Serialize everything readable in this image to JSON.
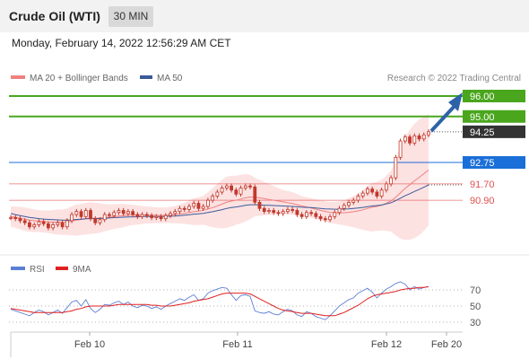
{
  "header": {
    "title": "Crude Oil (WTI)",
    "timeframe": "30 MIN"
  },
  "timestamp": "Monday, February 14, 2022 12:56:29 AM CET",
  "colors": {
    "resistance": "#4aa61d",
    "pivot": "#1a6fd8",
    "support": "#e05050",
    "price_label": "#333333",
    "candle": "#c0392b",
    "bollinger_fill": "#fde2e2",
    "ma20": "#f08080",
    "ma50": "#3c5a99",
    "arrow": "#2e62a8",
    "rsi": "#5b7fd6",
    "rsi_ma": "#e02020"
  },
  "chart_data": [
    {
      "type": "line",
      "chart": "price",
      "legend": [
        "MA 20 + Bollinger Bands",
        "MA 50"
      ],
      "copyright": "Research © 2022 Trading Central",
      "x_ticks": [
        "Feb 10",
        "Feb 11",
        "Feb 12",
        "Feb 20"
      ],
      "levels": [
        {
          "value": 96.0,
          "label": "96.00",
          "kind": "resistance"
        },
        {
          "value": 95.0,
          "label": "95.00",
          "kind": "resistance"
        },
        {
          "value": 94.25,
          "label": "94.25",
          "kind": "last"
        },
        {
          "value": 92.75,
          "label": "92.75",
          "kind": "pivot"
        },
        {
          "value": 91.7,
          "label": "91.70",
          "kind": "support"
        },
        {
          "value": 90.9,
          "label": "90.90",
          "kind": "support"
        }
      ],
      "close": [
        90.05,
        90.0,
        89.9,
        89.8,
        89.6,
        89.7,
        89.85,
        89.75,
        89.55,
        89.7,
        89.8,
        89.6,
        89.9,
        90.2,
        90.35,
        90.1,
        90.4,
        90.0,
        89.8,
        89.95,
        90.2,
        90.15,
        90.3,
        90.4,
        90.25,
        90.35,
        90.2,
        90.1,
        90.2,
        90.15,
        90.05,
        90.1,
        90.0,
        90.15,
        90.25,
        90.35,
        90.5,
        90.45,
        90.6,
        90.75,
        90.5,
        90.6,
        90.9,
        91.1,
        91.3,
        91.5,
        91.6,
        91.4,
        91.2,
        91.5,
        91.6,
        91.55,
        90.8,
        90.5,
        90.35,
        90.4,
        90.3,
        90.25,
        90.35,
        90.45,
        90.4,
        90.2,
        90.1,
        90.3,
        90.25,
        90.1,
        90.0,
        89.95,
        90.1,
        90.3,
        90.5,
        90.65,
        90.8,
        90.9,
        91.1,
        91.25,
        91.45,
        91.3,
        91.1,
        91.4,
        91.7,
        92.0,
        93.0,
        93.8,
        94.0,
        93.7,
        94.05,
        93.9,
        94.1,
        94.25
      ],
      "ma20": [
        90.1,
        90.07,
        90.02,
        89.97,
        89.93,
        89.9,
        89.88,
        89.86,
        89.84,
        89.83,
        89.83,
        89.82,
        89.84,
        89.88,
        89.93,
        89.96,
        90.0,
        90.02,
        90.02,
        90.03,
        90.05,
        90.07,
        90.1,
        90.13,
        90.15,
        90.17,
        90.18,
        90.18,
        90.18,
        90.18,
        90.17,
        90.17,
        90.16,
        90.17,
        90.18,
        90.2,
        90.23,
        90.26,
        90.3,
        90.34,
        90.37,
        90.41,
        90.47,
        90.54,
        90.62,
        90.71,
        90.8,
        90.86,
        90.9,
        90.96,
        91.02,
        91.06,
        91.05,
        91.02,
        90.98,
        90.94,
        90.9,
        90.86,
        90.82,
        90.78,
        90.74,
        90.68,
        90.62,
        90.57,
        90.52,
        90.46,
        90.4,
        90.35,
        90.31,
        90.29,
        90.28,
        90.29,
        90.31,
        90.34,
        90.38,
        90.43,
        90.5,
        90.56,
        90.6,
        90.66,
        90.75,
        90.86,
        91.04,
        91.26,
        91.48,
        91.66,
        91.85,
        92.02,
        92.2,
        92.38
      ],
      "upper_band": [
        90.6,
        90.6,
        90.58,
        90.55,
        90.5,
        90.45,
        90.42,
        90.4,
        90.4,
        90.42,
        90.45,
        90.45,
        90.5,
        90.6,
        90.7,
        90.72,
        90.78,
        90.8,
        90.78,
        90.75,
        90.72,
        90.7,
        90.7,
        90.72,
        90.72,
        90.7,
        90.68,
        90.65,
        90.62,
        90.6,
        90.58,
        90.56,
        90.55,
        90.55,
        90.58,
        90.62,
        90.7,
        90.78,
        90.88,
        91.0,
        91.05,
        91.12,
        91.3,
        91.5,
        91.7,
        91.9,
        92.05,
        92.1,
        92.1,
        92.15,
        92.18,
        92.15,
        92.0,
        91.9,
        91.8,
        91.7,
        91.6,
        91.5,
        91.4,
        91.35,
        91.3,
        91.2,
        91.1,
        91.05,
        91.0,
        90.95,
        90.9,
        90.85,
        90.82,
        90.82,
        90.85,
        90.9,
        91.0,
        91.1,
        91.25,
        91.4,
        91.6,
        91.75,
        91.8,
        91.9,
        92.1,
        92.35,
        92.9,
        93.5,
        94.0,
        94.35,
        94.65,
        94.85,
        95.0,
        95.1
      ],
      "lower_band": [
        89.6,
        89.55,
        89.48,
        89.4,
        89.35,
        89.34,
        89.34,
        89.32,
        89.3,
        89.25,
        89.22,
        89.2,
        89.2,
        89.18,
        89.16,
        89.2,
        89.22,
        89.25,
        89.27,
        89.31,
        89.38,
        89.44,
        89.5,
        89.54,
        89.58,
        89.64,
        89.68,
        89.71,
        89.74,
        89.76,
        89.77,
        89.78,
        89.78,
        89.79,
        89.78,
        89.78,
        89.76,
        89.74,
        89.72,
        89.68,
        89.69,
        89.7,
        89.64,
        89.58,
        89.54,
        89.52,
        89.55,
        89.62,
        89.7,
        89.77,
        89.86,
        89.97,
        90.1,
        90.14,
        90.16,
        90.18,
        90.2,
        90.22,
        90.24,
        90.21,
        90.18,
        90.16,
        90.14,
        90.09,
        90.04,
        89.97,
        89.9,
        89.85,
        89.8,
        89.76,
        89.71,
        89.68,
        89.62,
        89.58,
        89.51,
        89.46,
        89.4,
        89.37,
        89.4,
        89.42,
        89.4,
        89.37,
        89.18,
        89.02,
        88.96,
        88.97,
        89.05,
        89.19,
        89.4,
        89.66
      ],
      "ma50": [
        90.25,
        90.2,
        90.15,
        90.1,
        90.06,
        90.03,
        90.0,
        89.98,
        89.96,
        89.95,
        89.94,
        89.93,
        89.93,
        89.94,
        89.96,
        89.97,
        89.99,
        90.0,
        90.0,
        90.01,
        90.02,
        90.03,
        90.05,
        90.06,
        90.07,
        90.08,
        90.09,
        90.09,
        90.1,
        90.1,
        90.1,
        90.1,
        90.1,
        90.11,
        90.12,
        90.13,
        90.15,
        90.17,
        90.19,
        90.22,
        90.24,
        90.26,
        90.3,
        90.34,
        90.39,
        90.44,
        90.5,
        90.54,
        90.57,
        90.61,
        90.65,
        90.68,
        90.68,
        90.67,
        90.66,
        90.65,
        90.64,
        90.63,
        90.62,
        90.61,
        90.6,
        90.58,
        90.56,
        90.55,
        90.54,
        90.52,
        90.5,
        90.48,
        90.47,
        90.46,
        90.46,
        90.47,
        90.48,
        90.5,
        90.52,
        90.55,
        90.59,
        90.62,
        90.64,
        90.67,
        90.72,
        90.78,
        90.88,
        91.0,
        91.12,
        91.22,
        91.33,
        91.43,
        91.54,
        91.65
      ]
    },
    {
      "type": "line",
      "chart": "rsi",
      "legend": [
        "RSI",
        "9MA"
      ],
      "y_ticks": [
        70,
        50,
        30
      ],
      "rsi": [
        46,
        44,
        42,
        40,
        38,
        42,
        45,
        43,
        39,
        42,
        45,
        41,
        48,
        55,
        57,
        50,
        58,
        47,
        42,
        46,
        52,
        51,
        54,
        56,
        52,
        55,
        50,
        48,
        51,
        50,
        47,
        49,
        46,
        50,
        53,
        56,
        59,
        57,
        61,
        64,
        57,
        59,
        66,
        69,
        71,
        73,
        72,
        64,
        57,
        63,
        64,
        62,
        44,
        42,
        41,
        43,
        40,
        39,
        43,
        46,
        44,
        39,
        37,
        43,
        41,
        37,
        35,
        33,
        38,
        44,
        50,
        54,
        58,
        60,
        66,
        69,
        72,
        67,
        60,
        66,
        71,
        74,
        78,
        80,
        77,
        70,
        74,
        71,
        73,
        74
      ],
      "rsi_ma": [
        47,
        46,
        45,
        44,
        43,
        42,
        42,
        42,
        42,
        42,
        42,
        42,
        43,
        44,
        46,
        47,
        49,
        50,
        50,
        50,
        50,
        50,
        51,
        52,
        52,
        52,
        52,
        52,
        52,
        52,
        51,
        51,
        50,
        50,
        50,
        51,
        52,
        53,
        54,
        56,
        57,
        58,
        59,
        61,
        63,
        65,
        66,
        66,
        66,
        66,
        66,
        65,
        62,
        59,
        56,
        53,
        50,
        47,
        45,
        44,
        43,
        42,
        41,
        41,
        41,
        40,
        39,
        38,
        38,
        38,
        40,
        42,
        45,
        48,
        51,
        55,
        59,
        62,
        64,
        65,
        66,
        67,
        68,
        70,
        71,
        72,
        72,
        73,
        73,
        74
      ]
    }
  ]
}
